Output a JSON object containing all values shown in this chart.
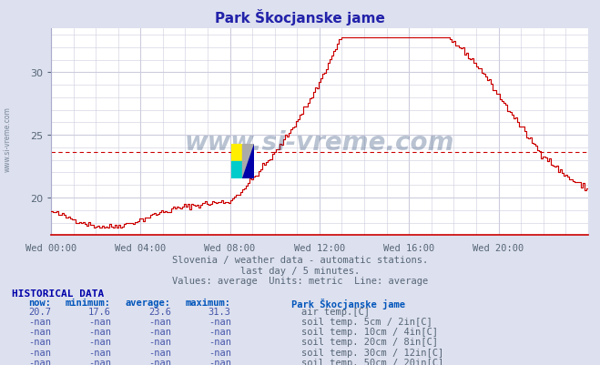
{
  "title": "Park Škocjanske jame",
  "title_color": "#2222aa",
  "bg_color": "#dde0ee",
  "plot_bg_color": "#ffffff",
  "grid_color": "#ccccdd",
  "line_color": "#cc0000",
  "avg_line_value": 23.6,
  "ylim": [
    17.0,
    33.5
  ],
  "yticks": [
    20,
    25,
    30
  ],
  "xtick_positions": [
    0,
    4,
    8,
    12,
    16,
    20
  ],
  "xtick_labels": [
    "Wed 00:00",
    "Wed 04:00",
    "Wed 08:00",
    "Wed 12:00",
    "Wed 16:00",
    "Wed 20:00"
  ],
  "label_color": "#556677",
  "subtitle1": "Slovenia / weather data - automatic stations.",
  "subtitle2": "last day / 5 minutes.",
  "subtitle3": "Values: average  Units: metric  Line: average",
  "subtitle_color": "#556677",
  "hist_title": "HISTORICAL DATA",
  "hist_title_color": "#0000aa",
  "hist_header_color": "#0055bb",
  "hist_value_color": "#4455aa",
  "col_headers": [
    "now:",
    "minimum:",
    "average:",
    "maximum:",
    "Park Škocjanske jame"
  ],
  "rows": [
    {
      "now": "20.7",
      "min": "17.6",
      "avg": "23.6",
      "max": "31.3",
      "color": "#cc0000",
      "label": "air temp.[C]"
    },
    {
      "now": "-nan",
      "min": "-nan",
      "avg": "-nan",
      "max": "-nan",
      "color": "#c8a898",
      "label": "soil temp. 5cm / 2in[C]"
    },
    {
      "now": "-nan",
      "min": "-nan",
      "avg": "-nan",
      "max": "-nan",
      "color": "#b08850",
      "label": "soil temp. 10cm / 4in[C]"
    },
    {
      "now": "-nan",
      "min": "-nan",
      "avg": "-nan",
      "max": "-nan",
      "color": "#c09020",
      "label": "soil temp. 20cm / 8in[C]"
    },
    {
      "now": "-nan",
      "min": "-nan",
      "avg": "-nan",
      "max": "-nan",
      "color": "#806838",
      "label": "soil temp. 30cm / 12in[C]"
    },
    {
      "now": "-nan",
      "min": "-nan",
      "avg": "-nan",
      "max": "-nan",
      "color": "#704828",
      "label": "soil temp. 50cm / 20in[C]"
    }
  ],
  "watermark_text": "www.si-vreme.com",
  "watermark_color": "#1a3a6a",
  "watermark_alpha": 0.3,
  "n_points": 288
}
